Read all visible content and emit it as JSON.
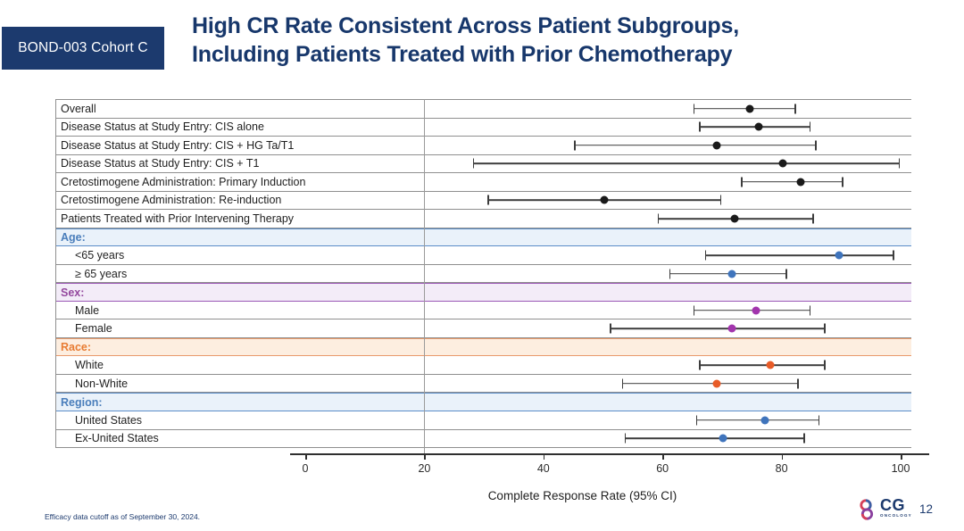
{
  "header": {
    "badge": "BOND-003 Cohort C",
    "title_line1": "High CR Rate Consistent Across Patient Subgroups,",
    "title_line2": "Including Patients Treated with Prior Chemotherapy"
  },
  "chart_data": {
    "type": "forest",
    "xlabel": "Complete Response Rate (95% CI)",
    "xlim": [
      0,
      100
    ],
    "x_ticks": [
      0,
      20,
      40,
      60,
      80,
      100
    ],
    "divider_at": 20,
    "point_colors": {
      "black": "#1a1a1a",
      "blue": "#3f74bc",
      "purple": "#a235ad",
      "orange": "#e85c28"
    },
    "section_themes": {
      "blue": {
        "bg": "#eaf2fa",
        "border": "#5b8dc8",
        "text": "#4a7ebb"
      },
      "purple": {
        "bg": "#f3ecf8",
        "border": "#9b59b6",
        "text": "#94489e"
      },
      "orange": {
        "bg": "#fdeee0",
        "border": "#e89a6b",
        "text": "#e87c33"
      }
    },
    "rows": [
      {
        "type": "item",
        "indent": false,
        "label": "Overall",
        "lo": 65,
        "mid": 74.5,
        "hi": 82,
        "color": "black"
      },
      {
        "type": "item",
        "indent": false,
        "label": "Disease Status at Study Entry: CIS alone",
        "lo": 66,
        "mid": 76,
        "hi": 84.5,
        "color": "black"
      },
      {
        "type": "item",
        "indent": false,
        "label": "Disease Status at Study Entry: CIS + HG Ta/T1",
        "lo": 45,
        "mid": 69,
        "hi": 85.5,
        "color": "black"
      },
      {
        "type": "item",
        "indent": false,
        "label": "Disease Status at Study Entry: CIS + T1",
        "lo": 28,
        "mid": 80,
        "hi": 99.5,
        "color": "black"
      },
      {
        "type": "item",
        "indent": false,
        "label": "Cretostimogene Administration: Primary Induction",
        "lo": 73,
        "mid": 83,
        "hi": 90,
        "color": "black"
      },
      {
        "type": "item",
        "indent": false,
        "label": "Cretostimogene Administration: Re-induction",
        "lo": 30.5,
        "mid": 50,
        "hi": 69.5,
        "color": "black"
      },
      {
        "type": "item",
        "indent": false,
        "label": "Patients Treated with Prior Intervening Therapy",
        "lo": 59,
        "mid": 72,
        "hi": 85,
        "color": "black"
      },
      {
        "type": "section",
        "label": "Age:",
        "theme": "blue"
      },
      {
        "type": "item",
        "indent": true,
        "label": "<65 years",
        "lo": 67,
        "mid": 89.5,
        "hi": 98.5,
        "color": "blue"
      },
      {
        "type": "item",
        "indent": true,
        "label": "≥ 65 years",
        "lo": 61,
        "mid": 71.5,
        "hi": 80.5,
        "color": "blue"
      },
      {
        "type": "section",
        "label": "Sex:",
        "theme": "purple"
      },
      {
        "type": "item",
        "indent": true,
        "label": "Male",
        "lo": 65,
        "mid": 75.5,
        "hi": 84.5,
        "color": "purple"
      },
      {
        "type": "item",
        "indent": true,
        "label": "Female",
        "lo": 51,
        "mid": 71.5,
        "hi": 87,
        "color": "purple"
      },
      {
        "type": "section",
        "label": "Race:",
        "theme": "orange"
      },
      {
        "type": "item",
        "indent": true,
        "label": "White",
        "lo": 66,
        "mid": 78,
        "hi": 87,
        "color": "orange"
      },
      {
        "type": "item",
        "indent": true,
        "label": "Non-White",
        "lo": 53,
        "mid": 69,
        "hi": 82.5,
        "color": "orange"
      },
      {
        "type": "section",
        "label": "Region:",
        "theme": "blue"
      },
      {
        "type": "item",
        "indent": true,
        "label": "United States",
        "lo": 65.5,
        "mid": 77,
        "hi": 86,
        "color": "blue"
      },
      {
        "type": "item",
        "indent": true,
        "label": "Ex-United States",
        "lo": 53.5,
        "mid": 70,
        "hi": 83.5,
        "color": "blue"
      }
    ]
  },
  "footer": {
    "note": "Efficacy data cutoff as of September 30, 2024.",
    "logo_text": "CG",
    "logo_sub": "ONCOLOGY",
    "page": "12"
  }
}
